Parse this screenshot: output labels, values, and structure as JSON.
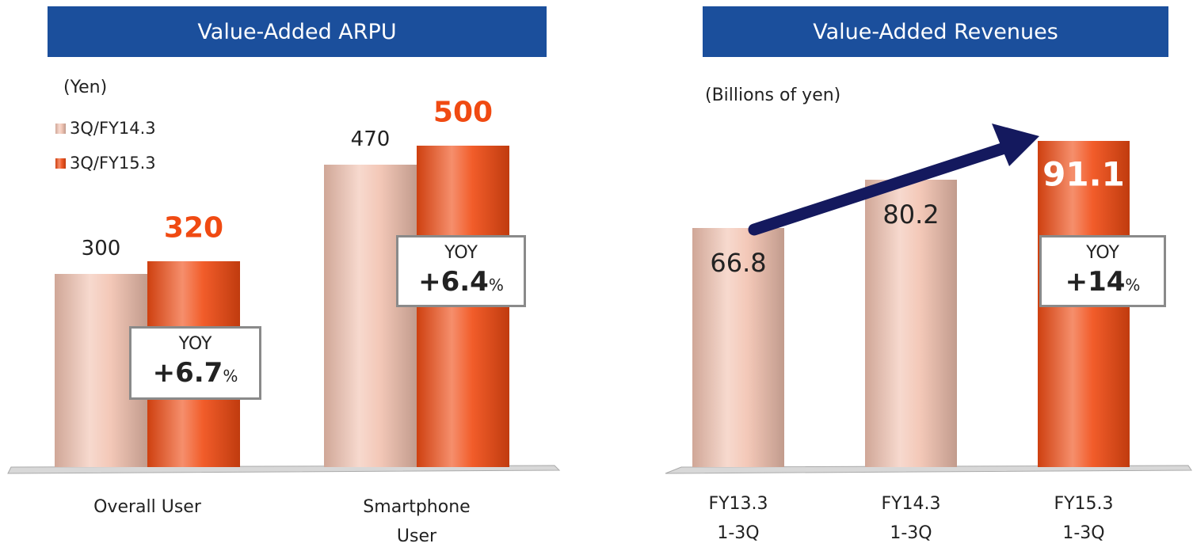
{
  "chart_data": [
    {
      "type": "bar",
      "title": "Value-Added ARPU",
      "unit": "(Yen)",
      "categories": [
        "Overall User",
        "Smartphone User"
      ],
      "series": [
        {
          "name": "3Q/FY14.3",
          "color": "#f2c2b0",
          "values": [
            300,
            470
          ]
        },
        {
          "name": "3Q/FY15.3",
          "color": "#f04a12",
          "values": [
            320,
            500
          ]
        }
      ],
      "legend": "top-left",
      "annotations": [
        {
          "label": "YOY",
          "value": "+6.7",
          "unit": "%"
        },
        {
          "label": "YOY",
          "value": "+6.4",
          "unit": "%"
        }
      ]
    },
    {
      "type": "bar",
      "title": "Value-Added Revenues",
      "unit": "(Billions of yen)",
      "categories": [
        "FY13.3 1-3Q",
        "FY14.3 1-3Q",
        "FY15.3 1-3Q"
      ],
      "values": [
        66.8,
        80.2,
        91.1
      ],
      "colors": [
        "#f2c2b0",
        "#f2c2b0",
        "#f04a12"
      ],
      "annotations": [
        {
          "label": "YOY",
          "value": "+14",
          "unit": "%"
        }
      ]
    }
  ]
}
